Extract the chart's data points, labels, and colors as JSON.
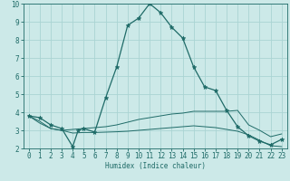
{
  "xlabel": "Humidex (Indice chaleur)",
  "xlim": [
    -0.5,
    23.5
  ],
  "ylim": [
    2,
    10
  ],
  "yticks": [
    2,
    3,
    4,
    5,
    6,
    7,
    8,
    9,
    10
  ],
  "xticks": [
    0,
    1,
    2,
    3,
    4,
    5,
    6,
    7,
    8,
    9,
    10,
    11,
    12,
    13,
    14,
    15,
    16,
    17,
    18,
    19,
    20,
    21,
    22,
    23
  ],
  "bg_color": "#cce9e8",
  "grid_color": "#aad4d3",
  "line_color": "#1f6b68",
  "curve_main": {
    "x": [
      0,
      1,
      2,
      3,
      4,
      4.5,
      5,
      6,
      7,
      8,
      9,
      10,
      11,
      12,
      13,
      14,
      15,
      16,
      17,
      18,
      19,
      20,
      21,
      22,
      23
    ],
    "y": [
      3.8,
      3.7,
      3.3,
      3.1,
      2.1,
      3.0,
      3.1,
      2.9,
      4.8,
      6.5,
      8.8,
      9.2,
      10.0,
      9.5,
      8.7,
      8.1,
      6.5,
      5.4,
      5.2,
      4.1,
      3.2,
      2.7,
      2.4,
      2.2,
      2.5
    ]
  },
  "curve_upper": {
    "x": [
      0,
      1,
      2,
      3,
      4,
      5,
      6,
      7,
      8,
      9,
      10,
      11,
      12,
      13,
      14,
      15,
      16,
      17,
      18,
      19,
      20,
      21,
      22,
      23
    ],
    "y": [
      3.8,
      3.5,
      3.1,
      3.0,
      3.05,
      3.1,
      3.15,
      3.2,
      3.3,
      3.45,
      3.6,
      3.7,
      3.8,
      3.9,
      3.95,
      4.05,
      4.05,
      4.05,
      4.05,
      4.1,
      3.3,
      3.0,
      2.65,
      2.8
    ]
  },
  "curve_lower": {
    "x": [
      0,
      1,
      2,
      3,
      4,
      5,
      6,
      7,
      8,
      9,
      10,
      11,
      12,
      13,
      14,
      15,
      16,
      17,
      18,
      19,
      20,
      21,
      22,
      23
    ],
    "y": [
      3.8,
      3.4,
      3.1,
      3.0,
      2.85,
      2.88,
      2.88,
      2.9,
      2.92,
      2.95,
      3.0,
      3.05,
      3.1,
      3.15,
      3.2,
      3.25,
      3.2,
      3.15,
      3.05,
      2.95,
      2.75,
      2.45,
      2.15,
      2.1
    ]
  },
  "xlabel_fontsize": 5.5,
  "tick_fontsize": 5.5
}
